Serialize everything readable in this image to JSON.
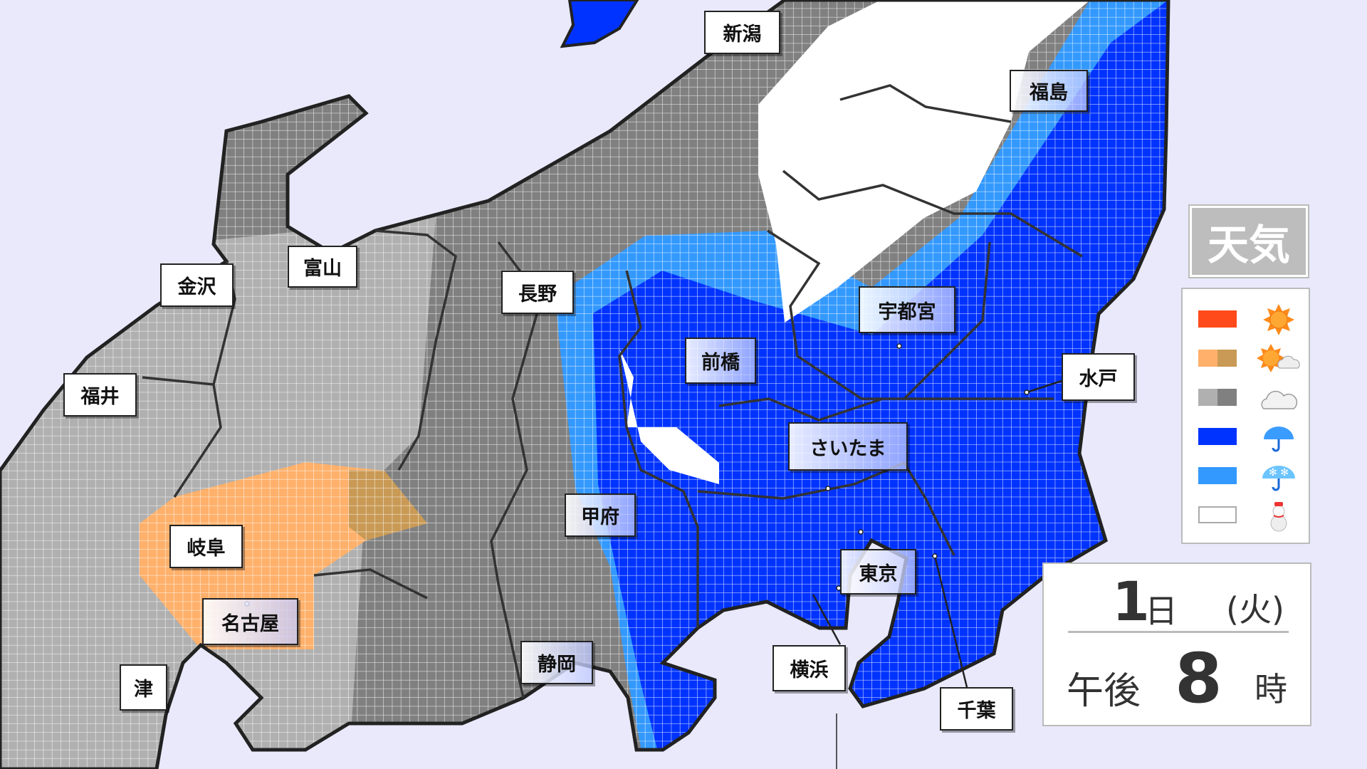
{
  "title": "天気",
  "colors": {
    "sea": "#e9e9fb",
    "sunny": "#ff4a1c",
    "sunny_cloudy_light": "#ffb06a",
    "sunny_cloudy_dark": "#c99a55",
    "cloudy_light": "#b0b0b0",
    "cloudy_dark": "#808080",
    "rain": "#0033ff",
    "rain_snow": "#3399ff",
    "snow": "#ffffff"
  },
  "legend": [
    {
      "icon": "sun-icon",
      "meaning": "sunny"
    },
    {
      "icon": "sun-cloud-icon",
      "meaning": "sunny-then-cloudy"
    },
    {
      "icon": "cloud-icon",
      "meaning": "cloudy"
    },
    {
      "icon": "umbrella-icon",
      "meaning": "rain"
    },
    {
      "icon": "umbrella-snow-icon",
      "meaning": "rain-or-snow"
    },
    {
      "icon": "snowman-icon",
      "meaning": "snow"
    }
  ],
  "cities": [
    {
      "name": "新潟"
    },
    {
      "name": "福島"
    },
    {
      "name": "富山"
    },
    {
      "name": "金沢"
    },
    {
      "name": "長野"
    },
    {
      "name": "宇都宮"
    },
    {
      "name": "前橋"
    },
    {
      "name": "水戸"
    },
    {
      "name": "福井"
    },
    {
      "name": "さいたま"
    },
    {
      "name": "甲府"
    },
    {
      "name": "岐阜"
    },
    {
      "name": "東京"
    },
    {
      "name": "名古屋"
    },
    {
      "name": "静岡"
    },
    {
      "name": "横浜"
    },
    {
      "name": "津"
    },
    {
      "name": "千葉"
    }
  ],
  "date": {
    "day": "1",
    "day_unit": "日",
    "weekday": "(火)",
    "ampm": "午後",
    "hour": "8",
    "hour_unit": "時"
  }
}
